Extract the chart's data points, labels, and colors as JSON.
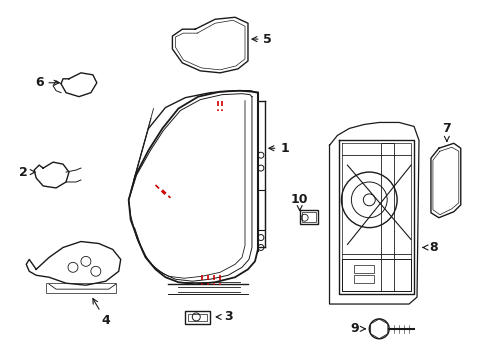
{
  "bg_color": "#ffffff",
  "fig_width": 4.89,
  "fig_height": 3.6,
  "dpi": 100,
  "line_color": "#1a1a1a",
  "red_color": "#cc0000"
}
